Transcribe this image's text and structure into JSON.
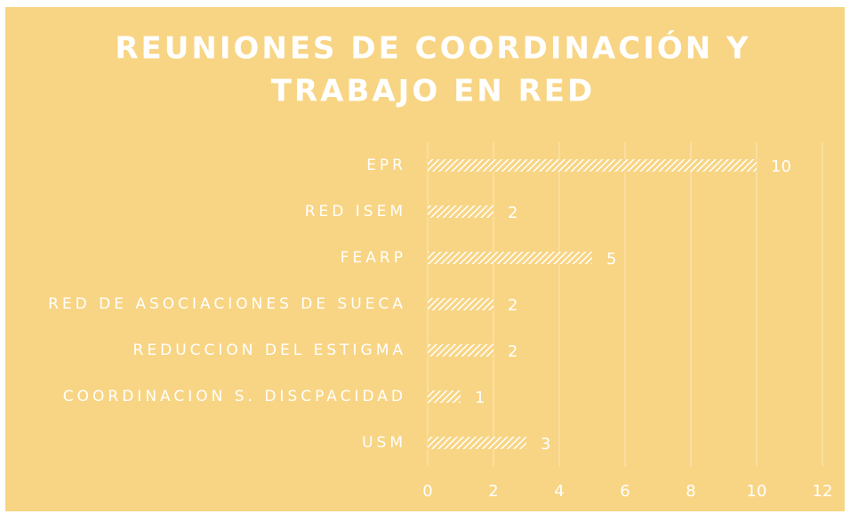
{
  "chart_data": {
    "type": "barh",
    "title": [
      "REUNIONES DE COORDINACIÓN Y",
      "TRABAJO EN RED"
    ],
    "categories": [
      "EPR",
      "RED ISEM",
      "FEARP",
      "RED DE ASOCIACIONES DE SUECA",
      "REDUCCION DEL ESTIGMA",
      "COORDINACION S. DISCPACIDAD",
      "USM"
    ],
    "values": [
      10,
      2,
      5,
      2,
      2,
      1,
      3
    ],
    "color": "#ffffff",
    "background": "#f8d584",
    "xlim": [
      0,
      12
    ],
    "xticks": [
      0,
      2,
      4,
      6,
      8,
      10,
      12
    ],
    "grid": true
  }
}
